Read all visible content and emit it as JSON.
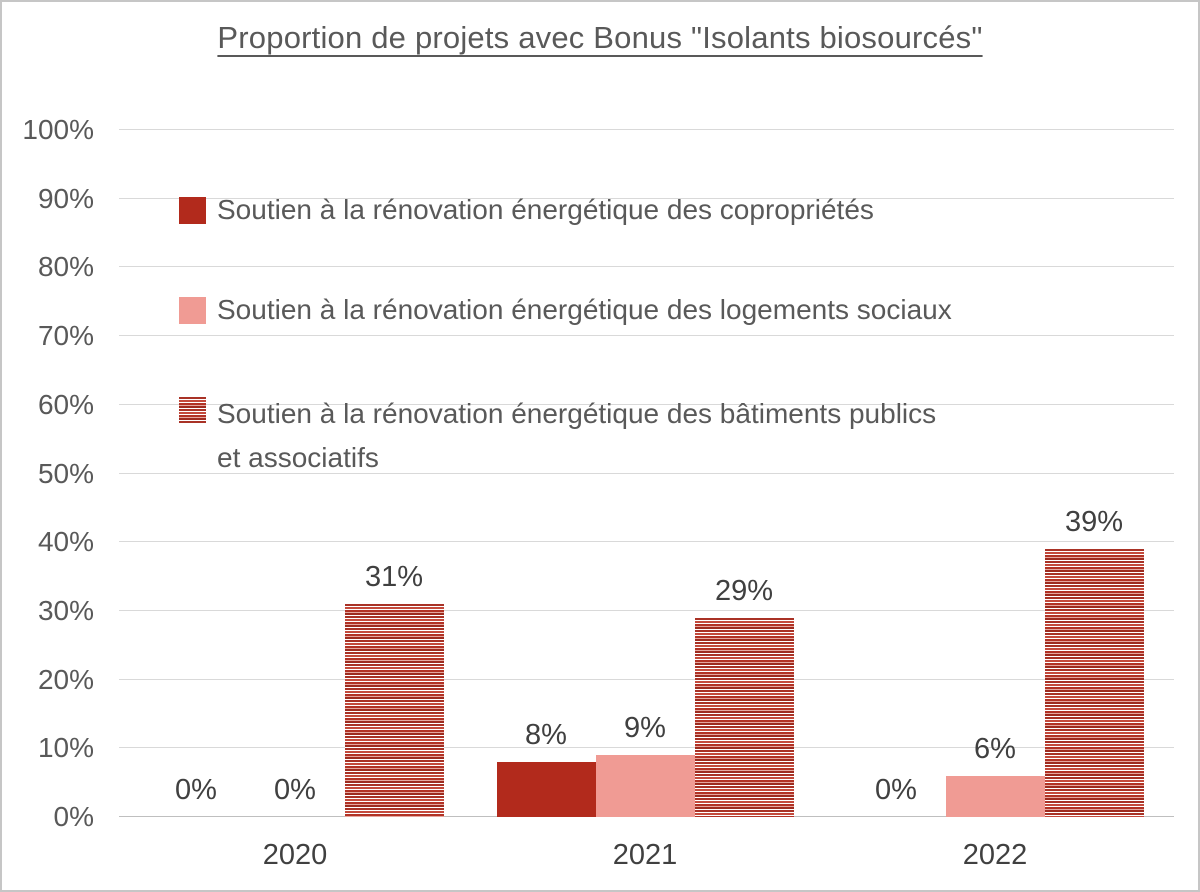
{
  "title": "Proportion de projets avec Bonus \"Isolants biosourcés\"",
  "legend": {
    "items": [
      {
        "label": "Soutien à la rénovation énergétique des copropriétés",
        "label2": "",
        "marker": "solid-dark-red-square"
      },
      {
        "label": "Soutien à la rénovation énergétique des logements sociaux",
        "label2": "",
        "marker": "solid-pink-square"
      },
      {
        "label": "Soutien à la rénovation énergétique des bâtiments publics",
        "label2": "et associatifs",
        "marker": "red-horizontal-stripes-square"
      }
    ]
  },
  "colors": {
    "dark_red": "#B22A1C",
    "pink": "#F09B94",
    "stripe_red": "#B23225",
    "gridline": "#D9D9D9",
    "baseline": "#BFBFBF",
    "axis_text": "#595959",
    "label_text": "#404040"
  },
  "chart_data": {
    "type": "bar",
    "title": "Proportion de projets avec Bonus \"Isolants biosourcés\"",
    "categories": [
      "2020",
      "2021",
      "2022"
    ],
    "series": [
      {
        "name": "Soutien à la rénovation énergétique des copropriétés",
        "key": "coproprietes",
        "values": [
          0,
          8,
          0
        ],
        "labels": [
          "0%",
          "8%",
          "0%"
        ],
        "style": "solid",
        "color": "#B22A1C"
      },
      {
        "name": "Soutien à la rénovation énergétique des logements sociaux",
        "key": "logements-sociaux",
        "values": [
          0,
          9,
          6
        ],
        "labels": [
          "0%",
          "9%",
          "6%"
        ],
        "style": "solid",
        "color": "#F09B94"
      },
      {
        "name": "Soutien à la rénovation énergétique des bâtiments publics et associatifs",
        "key": "batiments-publics",
        "values": [
          31,
          29,
          39
        ],
        "labels": [
          "31%",
          "29%",
          "39%"
        ],
        "style": "striped",
        "color": "#B23225",
        "pattern": "horizontal-stripes"
      }
    ],
    "xlabel": "",
    "ylabel": "",
    "ylim": [
      0,
      100
    ],
    "yticks": [
      "0%",
      "10%",
      "20%",
      "30%",
      "40%",
      "50%",
      "60%",
      "70%",
      "80%",
      "90%",
      "100%"
    ],
    "grid": true,
    "legend_position": "inside-top-left",
    "data_labels": true
  }
}
